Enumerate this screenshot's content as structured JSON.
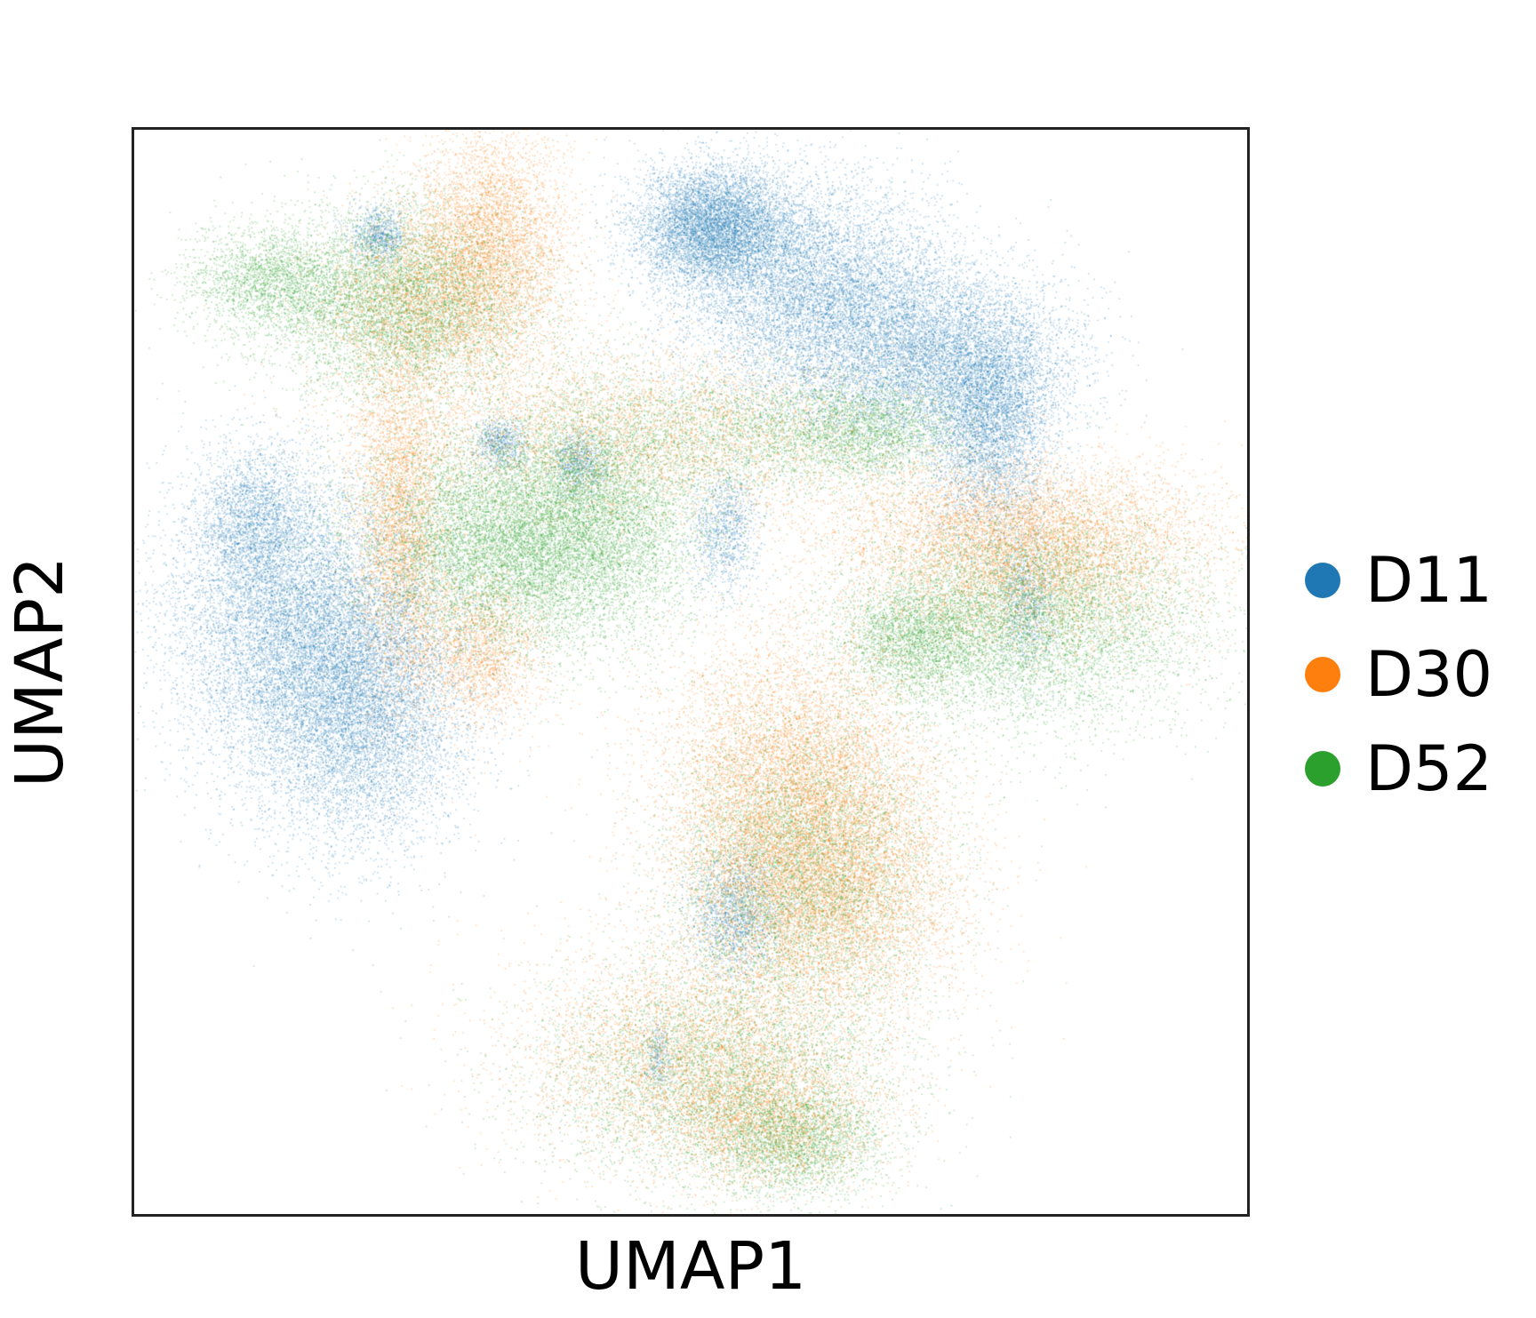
{
  "chart_data": {
    "type": "scatter",
    "title": "",
    "xlabel": "UMAP1",
    "ylabel": "UMAP2",
    "ticks": "none",
    "grid": false,
    "legend_position": "right",
    "xlim": [
      0,
      100
    ],
    "ylim": [
      0,
      100
    ],
    "series": [
      {
        "name": "D11",
        "color": "#1f77b4",
        "clusters": [
          {
            "x": 52,
            "y": 91,
            "sx": 3.5,
            "sy": 2.8,
            "weight": 1.3
          },
          {
            "x": 61,
            "y": 85,
            "sx": 6,
            "sy": 5,
            "weight": 1.6
          },
          {
            "x": 72,
            "y": 79,
            "sx": 6,
            "sy": 4,
            "weight": 1.3
          },
          {
            "x": 77,
            "y": 73,
            "sx": 3,
            "sy": 5,
            "weight": 0.9
          },
          {
            "x": 15,
            "y": 54,
            "sx": 6,
            "sy": 6.5,
            "weight": 1.8
          },
          {
            "x": 20,
            "y": 46,
            "sx": 5,
            "sy": 6,
            "weight": 1.4
          },
          {
            "x": 11,
            "y": 64,
            "sx": 2.8,
            "sy": 3.5,
            "weight": 0.5
          },
          {
            "x": 22,
            "y": 90,
            "sx": 1.3,
            "sy": 1.3,
            "weight": 0.15
          },
          {
            "x": 33,
            "y": 71,
            "sx": 1.2,
            "sy": 1.2,
            "weight": 0.12
          },
          {
            "x": 40,
            "y": 69,
            "sx": 1.2,
            "sy": 1.5,
            "weight": 0.12
          },
          {
            "x": 53,
            "y": 63,
            "sx": 1.5,
            "sy": 2.8,
            "weight": 0.2
          },
          {
            "x": 80,
            "y": 56,
            "sx": 1.2,
            "sy": 3,
            "weight": 0.15
          },
          {
            "x": 54,
            "y": 28,
            "sx": 2,
            "sy": 3,
            "weight": 0.3
          },
          {
            "x": 47,
            "y": 15,
            "sx": 0.6,
            "sy": 1.5,
            "weight": 0.05
          }
        ]
      },
      {
        "name": "D30",
        "color": "#ff7f0e",
        "clusters": [
          {
            "x": 32,
            "y": 90,
            "sx": 3.5,
            "sy": 5,
            "weight": 0.8
          },
          {
            "x": 27,
            "y": 84,
            "sx": 5,
            "sy": 4,
            "weight": 0.7
          },
          {
            "x": 24,
            "y": 64,
            "sx": 2.2,
            "sy": 8,
            "weight": 0.8
          },
          {
            "x": 31,
            "y": 52,
            "sx": 3,
            "sy": 3.5,
            "weight": 0.4
          },
          {
            "x": 45,
            "y": 72,
            "sx": 12,
            "sy": 4,
            "weight": 0.9
          },
          {
            "x": 79,
            "y": 64,
            "sx": 9,
            "sy": 3,
            "weight": 0.6
          },
          {
            "x": 80,
            "y": 60,
            "sx": 8,
            "sy": 4,
            "weight": 1.0
          },
          {
            "x": 59,
            "y": 40,
            "sx": 6,
            "sy": 7,
            "weight": 1.5
          },
          {
            "x": 62,
            "y": 30,
            "sx": 6,
            "sy": 6,
            "weight": 1.4
          },
          {
            "x": 50,
            "y": 15,
            "sx": 8,
            "sy": 5,
            "weight": 0.9
          },
          {
            "x": 57,
            "y": 9,
            "sx": 5,
            "sy": 3,
            "weight": 0.5
          }
        ]
      },
      {
        "name": "D52",
        "color": "#2ca02c",
        "clusters": [
          {
            "x": 12,
            "y": 86,
            "sx": 3.5,
            "sy": 2.5,
            "weight": 0.4
          },
          {
            "x": 24,
            "y": 84,
            "sx": 6,
            "sy": 4.5,
            "weight": 1.3
          },
          {
            "x": 34,
            "y": 62,
            "sx": 7,
            "sy": 5,
            "weight": 2.0
          },
          {
            "x": 42,
            "y": 66,
            "sx": 5,
            "sy": 6,
            "weight": 0.9
          },
          {
            "x": 56,
            "y": 72,
            "sx": 7,
            "sy": 3,
            "weight": 0.5
          },
          {
            "x": 66,
            "y": 72,
            "sx": 4,
            "sy": 2.5,
            "weight": 0.4
          },
          {
            "x": 80,
            "y": 55,
            "sx": 8,
            "sy": 5,
            "weight": 1.6
          },
          {
            "x": 70,
            "y": 53,
            "sx": 3,
            "sy": 2.5,
            "weight": 0.4
          },
          {
            "x": 60,
            "y": 32,
            "sx": 6,
            "sy": 7,
            "weight": 1.3
          },
          {
            "x": 52,
            "y": 13,
            "sx": 8,
            "sy": 5,
            "weight": 1.0
          },
          {
            "x": 59,
            "y": 7,
            "sx": 4,
            "sy": 2.5,
            "weight": 0.5
          }
        ]
      }
    ]
  }
}
